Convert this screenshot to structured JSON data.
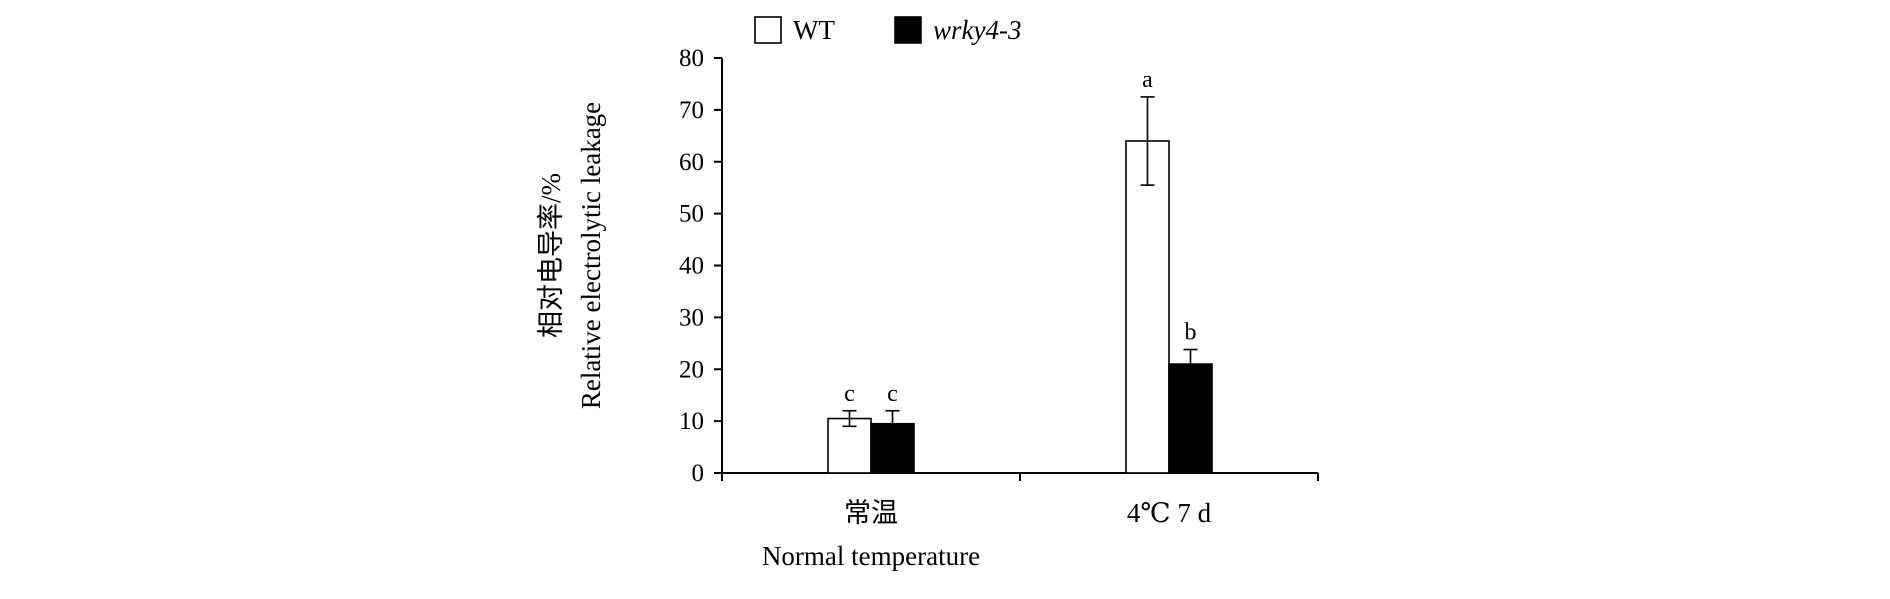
{
  "chart_data": {
    "type": "bar",
    "categories": [
      {
        "label": "常温",
        "sublabel": "Normal temperature"
      },
      {
        "label": "4℃ 7 d",
        "sublabel": ""
      }
    ],
    "series": [
      {
        "name": "WT",
        "italic": false,
        "fill": "#ffffff",
        "values": [
          10.5,
          64
        ],
        "errors": [
          1.5,
          8.5
        ],
        "significance": [
          "c",
          "a"
        ]
      },
      {
        "name": "wrky4-3",
        "italic": true,
        "fill": "#000000",
        "values": [
          9.5,
          21
        ],
        "errors": [
          2.5,
          2.8
        ],
        "significance": [
          "c",
          "b"
        ]
      }
    ],
    "ylabel": [
      "相对电导率/%",
      "Relative electrolytic leakage"
    ],
    "ylim": [
      0,
      80
    ],
    "yticks": [
      0,
      10,
      20,
      30,
      40,
      50,
      60,
      70,
      80
    ],
    "grid": false,
    "legend": "top"
  }
}
